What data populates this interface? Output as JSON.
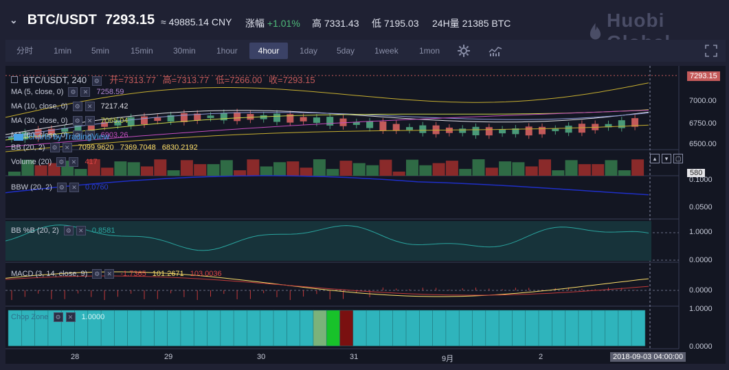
{
  "header": {
    "pair": "BTC/USDT",
    "price": "7293.15",
    "cny": "≈ 49885.14 CNY",
    "change_label": "涨幅",
    "change_value": "+1.01%",
    "high_label": "高",
    "high_value": "7331.43",
    "low_label": "低",
    "low_value": "7195.03",
    "vol_label": "24H量",
    "vol_value": "21385 BTC",
    "logo_text": "Huobi Global"
  },
  "timeframes": [
    "分时",
    "1min",
    "5min",
    "15min",
    "30min",
    "1hour",
    "4hour",
    "1day",
    "5day",
    "1week",
    "1mon"
  ],
  "active_timeframe": "4hour",
  "legend": {
    "symbol": "BTC/USDT, 240",
    "open_label": "开=",
    "open": "7313.77",
    "high_label": "高=",
    "high": "7313.77",
    "low_label": "低=",
    "low": "7266.00",
    "close_label": "收=",
    "close": "7293.15",
    "ma5_label": "MA (5, close, 0)",
    "ma5": "7258.59",
    "ma10_label": "MA (10, close, 0)",
    "ma10": "7217.42",
    "ma30_label": "MA (30, close, 0)",
    "ma30": "7065.04",
    "ma60_label": "MA (60, close, 0)",
    "ma60": "6903.26",
    "bb_label": "BB (20, 2)",
    "bb1": "7099.9620",
    "bb2": "7369.7048",
    "bb3": "6830.2192",
    "watermark": "charts by TradingView",
    "volume_label": "Volume (20)",
    "volume_val": "417",
    "bbw_label": "BBW (20, 2)",
    "bbw_val": "0.0760",
    "bbp_label": "BB %B (20, 2)",
    "bbp_val": "0.8581",
    "macd_label": "MACD (3, 14, close, 9)",
    "macd1": "-1.7365",
    "macd2": "101.2671",
    "macd3": "103.0036",
    "chop_label": "Chop Zone",
    "chop_val": "1.0000"
  },
  "price_axis": {
    "current": "7293.15",
    "ticks": [
      "7000.00",
      "6750.00",
      "6500.00"
    ],
    "vol_marker": "580",
    "bbw_ticks": [
      "0.1000",
      "0.0500"
    ],
    "bbp_ticks": [
      "1.0000",
      "0.0000"
    ],
    "macd_ticks": [
      "0.0000"
    ],
    "chop_ticks": [
      "1.0000",
      "0.0000"
    ]
  },
  "time_axis": {
    "ticks": [
      "28",
      "29",
      "30",
      "31",
      "9月",
      "2"
    ],
    "cursor": "2018-09-03 04:00:00"
  },
  "colors": {
    "up": "#4a9a78",
    "down": "#c45a5a",
    "ma5": "#e3e2e8",
    "ma10": "#8f9ad8",
    "ma30": "#cbd84a",
    "ma60": "#c54fbf",
    "bb": "#c8b030"
  }
}
